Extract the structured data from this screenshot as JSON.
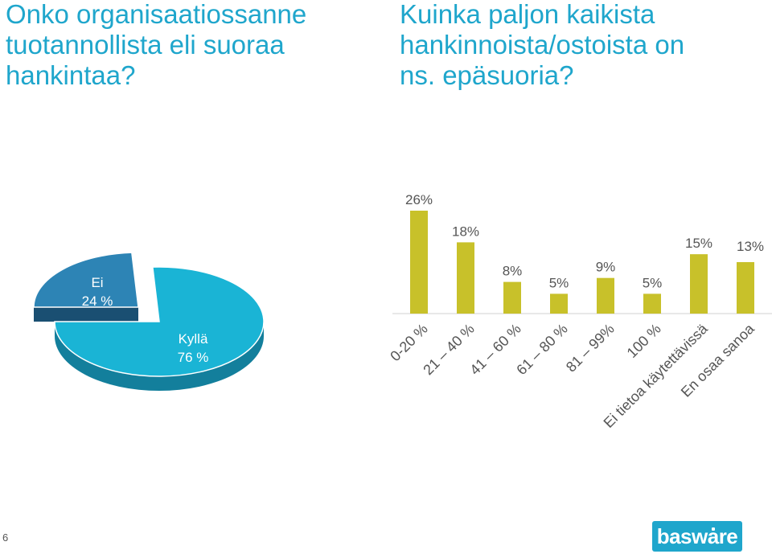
{
  "titles": {
    "left": "Onko organisaatiossanne\ntuotannollista eli suoraa\nhankintaa?",
    "right": "Kuinka paljon kaikista\nhankinnoista/ostoista on\nns. epäsuoria?"
  },
  "page_number": "6",
  "logo_text": "basware",
  "colors": {
    "title": "#1fa6cc",
    "pie_main_top": "#1ab4d5",
    "pie_main_side": "#137f9c",
    "pie_small_top": "#2d84b5",
    "pie_small_side": "#1a4f72",
    "bar": "#c8c12a",
    "label": "#555555"
  },
  "chart_data": [
    {
      "type": "pie",
      "style": "3d-exploded",
      "slices": [
        {
          "label": "Kyllä",
          "value": 76,
          "display": "76 %"
        },
        {
          "label": "Ei",
          "value": 24,
          "display": "24 %"
        }
      ]
    },
    {
      "type": "bar",
      "categories": [
        "0-20 %",
        "21 – 40 %",
        "41 – 60 %",
        "61 – 80 %",
        "81 – 99%",
        "100 %",
        "Ei tietoa käytettävissä",
        "En osaa sanoa"
      ],
      "values": [
        26,
        18,
        8,
        5,
        9,
        5,
        15,
        13
      ],
      "data_labels": [
        "26%",
        "18%",
        "8%",
        "5%",
        "9%",
        "5%",
        "15%",
        "13%"
      ],
      "grid": false,
      "legend": "none",
      "ylim": [
        0,
        26
      ]
    }
  ]
}
